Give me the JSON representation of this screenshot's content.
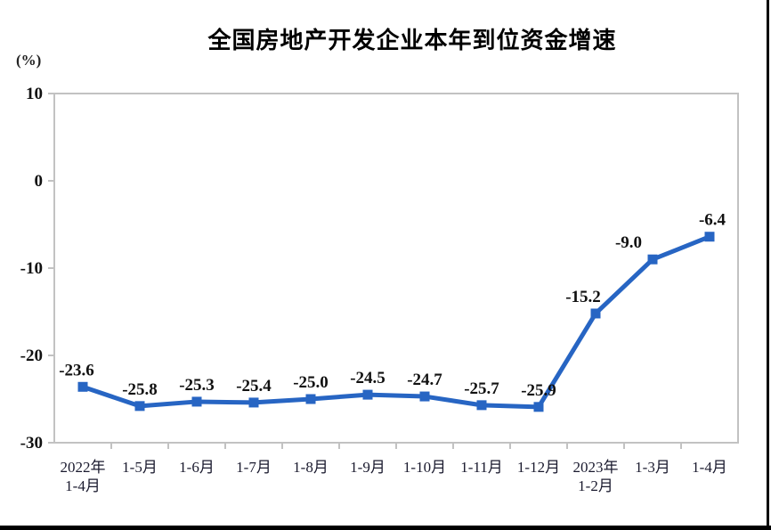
{
  "chart_data": {
    "type": "line",
    "title": "全国房地产开发企业本年到位资金增速",
    "xlabel": "",
    "ylabel": "(%)",
    "categories": [
      "2022年\n1-4月",
      "1-5月",
      "1-6月",
      "1-7月",
      "1-8月",
      "1-9月",
      "1-10月",
      "1-11月",
      "1-12月",
      "2023年\n1-2月",
      "1-3月",
      "1-4月"
    ],
    "values": [
      -23.6,
      -25.8,
      -25.3,
      -25.4,
      -25.0,
      -24.5,
      -24.7,
      -25.7,
      -25.9,
      -15.2,
      -9.0,
      -6.4
    ],
    "data_labels": [
      "-23.6",
      "-25.8",
      "-25.3",
      "-25.4",
      "-25.0",
      "-24.5",
      "-24.7",
      "-25.7",
      "-25.9",
      "-15.2",
      "-9.0",
      "-6.4"
    ],
    "label_dx": [
      -7,
      0,
      0,
      0,
      0,
      0,
      0,
      0,
      0,
      -14,
      -27,
      3
    ],
    "ylim": [
      -30,
      10
    ],
    "yticks": [
      "10",
      "0",
      "-10",
      "-20",
      "-30"
    ],
    "grid": false,
    "legend": "none",
    "marker": "square",
    "line_color": "#2765c3",
    "axis_color": "#c2c2c2",
    "text_color": "#111111"
  }
}
